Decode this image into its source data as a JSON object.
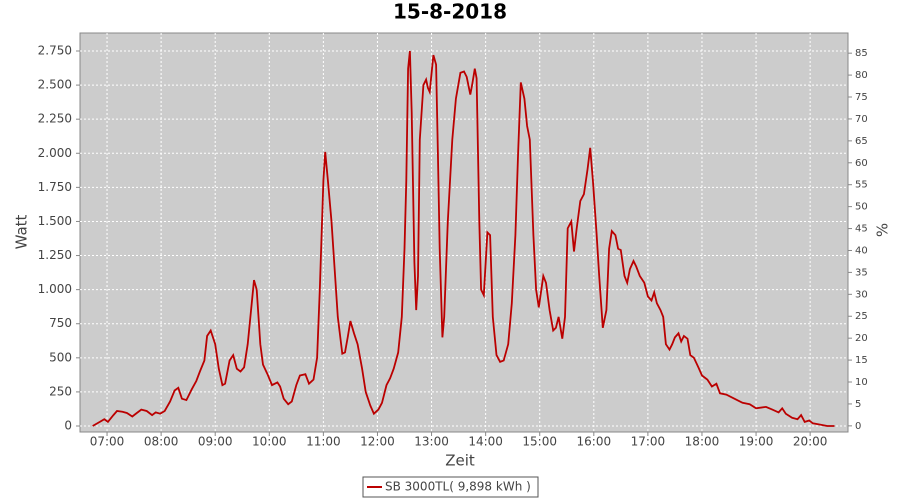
{
  "chart_data": {
    "type": "line",
    "title": "15-8-2018",
    "x_label": "Zeit",
    "y_label": "Watt",
    "y2_label": "%",
    "x": [
      "06:44",
      "06:52",
      "06:57",
      "07:01",
      "07:07",
      "07:11",
      "07:17",
      "07:22",
      "07:28",
      "07:33",
      "07:38",
      "07:44",
      "07:50",
      "07:54",
      "07:59",
      "08:04",
      "08:10",
      "08:15",
      "08:19",
      "08:23",
      "08:28",
      "08:34",
      "08:39",
      "08:43",
      "08:48",
      "08:51",
      "08:55",
      "09:00",
      "09:04",
      "09:08",
      "09:11",
      "09:16",
      "09:20",
      "09:24",
      "09:28",
      "09:32",
      "09:36",
      "09:39",
      "09:43",
      "09:46",
      "09:50",
      "09:53",
      "09:58",
      "10:03",
      "10:09",
      "10:12",
      "10:16",
      "10:21",
      "10:25",
      "10:30",
      "10:34",
      "10:40",
      "10:44",
      "10:49",
      "10:53",
      "10:56",
      "11:00",
      "11:02",
      "11:05",
      "11:09",
      "11:13",
      "11:16",
      "11:21",
      "11:24",
      "11:27",
      "11:30",
      "11:34",
      "11:38",
      "11:43",
      "11:47",
      "11:52",
      "11:56",
      "12:01",
      "12:05",
      "12:10",
      "12:14",
      "12:18",
      "12:23",
      "12:27",
      "12:30",
      "12:32",
      "12:34",
      "12:36",
      "12:38",
      "12:41",
      "12:43",
      "12:45",
      "12:47",
      "12:51",
      "12:54",
      "12:56",
      "12:58",
      "13:02",
      "13:05",
      "13:07",
      "13:09",
      "13:12",
      "13:14",
      "13:18",
      "13:23",
      "13:27",
      "13:32",
      "13:36",
      "13:39",
      "13:43",
      "13:45",
      "13:48",
      "13:50",
      "13:53",
      "13:55",
      "13:58",
      "14:02",
      "14:05",
      "14:08",
      "14:12",
      "14:16",
      "14:20",
      "14:25",
      "14:29",
      "14:33",
      "14:36",
      "14:39",
      "14:43",
      "14:46",
      "14:49",
      "14:53",
      "14:56",
      "14:59",
      "15:04",
      "15:07",
      "15:11",
      "15:15",
      "15:18",
      "15:21",
      "15:25",
      "15:28",
      "15:31",
      "15:35",
      "15:38",
      "15:41",
      "15:45",
      "15:49",
      "15:53",
      "15:56",
      "15:59",
      "16:03",
      "16:06",
      "16:10",
      "16:14",
      "16:17",
      "16:20",
      "16:24",
      "16:27",
      "16:30",
      "16:34",
      "16:37",
      "16:40",
      "16:44",
      "16:47",
      "16:51",
      "16:56",
      "17:00",
      "17:04",
      "17:07",
      "17:10",
      "17:14",
      "17:17",
      "17:20",
      "17:24",
      "17:27",
      "17:30",
      "17:34",
      "17:37",
      "17:40",
      "17:44",
      "17:47",
      "17:51",
      "17:56",
      "18:00",
      "18:06",
      "18:11",
      "18:16",
      "18:20",
      "18:27",
      "18:36",
      "18:45",
      "18:53",
      "19:00",
      "19:11",
      "19:18",
      "19:25",
      "19:29",
      "19:33",
      "19:40",
      "19:46",
      "19:50",
      "19:54",
      "19:59",
      "20:03",
      "20:11",
      "20:19",
      "20:27"
    ],
    "series": [
      {
        "name": "SB 3000TL( 9,898 kWh )",
        "color": "#bb0000",
        "values": [
          0,
          30,
          50,
          30,
          80,
          110,
          105,
          95,
          70,
          95,
          120,
          110,
          80,
          100,
          90,
          110,
          180,
          260,
          280,
          200,
          190,
          270,
          330,
          400,
          480,
          660,
          700,
          600,
          420,
          300,
          310,
          480,
          520,
          420,
          400,
          430,
          600,
          800,
          1070,
          1000,
          600,
          450,
          380,
          300,
          320,
          290,
          200,
          160,
          180,
          300,
          370,
          380,
          310,
          340,
          500,
          1000,
          1800,
          2010,
          1800,
          1500,
          1100,
          800,
          530,
          540,
          650,
          770,
          680,
          600,
          420,
          250,
          150,
          90,
          120,
          170,
          300,
          350,
          420,
          540,
          800,
          1300,
          1800,
          2620,
          2750,
          2300,
          1200,
          850,
          1100,
          2100,
          2500,
          2540,
          2480,
          2450,
          2720,
          2650,
          2000,
          1300,
          650,
          800,
          1500,
          2100,
          2400,
          2590,
          2600,
          2560,
          2430,
          2500,
          2620,
          2550,
          1500,
          1000,
          960,
          1420,
          1400,
          800,
          520,
          470,
          480,
          600,
          900,
          1400,
          2000,
          2520,
          2400,
          2200,
          2100,
          1400,
          1000,
          870,
          1100,
          1050,
          850,
          700,
          720,
          800,
          640,
          800,
          1450,
          1500,
          1280,
          1450,
          1650,
          1700,
          1880,
          2040,
          1800,
          1420,
          1100,
          720,
          850,
          1300,
          1430,
          1400,
          1300,
          1290,
          1100,
          1050,
          1150,
          1210,
          1170,
          1100,
          1050,
          950,
          920,
          980,
          900,
          850,
          800,
          600,
          560,
          600,
          650,
          680,
          620,
          660,
          640,
          520,
          500,
          430,
          370,
          340,
          290,
          310,
          240,
          230,
          200,
          170,
          160,
          130,
          140,
          120,
          100,
          130,
          90,
          60,
          50,
          80,
          30,
          40,
          20,
          10,
          0,
          0
        ]
      }
    ],
    "xlim": [
      "06:30",
      "20:42"
    ],
    "xticks": [
      "07:00",
      "08:00",
      "09:00",
      "10:00",
      "11:00",
      "12:00",
      "13:00",
      "14:00",
      "15:00",
      "16:00",
      "17:00",
      "18:00",
      "19:00",
      "20:00"
    ],
    "ylim": [
      -44,
      2882
    ],
    "yticks": [
      0,
      {
        "value": 250,
        "label": "250"
      },
      {
        "value": 500,
        "label": "500"
      },
      {
        "value": 750,
        "label": "750"
      },
      {
        "value": 1000,
        "label": "1.000"
      },
      {
        "value": 1250,
        "label": "1.250"
      },
      {
        "value": 1500,
        "label": "1.500"
      },
      {
        "value": 1750,
        "label": "1.750"
      },
      {
        "value": 2000,
        "label": "2.000"
      },
      {
        "value": 2250,
        "label": "2.250"
      },
      {
        "value": 2500,
        "label": "2.500"
      },
      {
        "value": 2750,
        "label": "2.750"
      }
    ],
    "y2lim": [
      -1.4,
      89.6
    ],
    "y2ticks": [
      0,
      5,
      10,
      15,
      20,
      25,
      30,
      35,
      40,
      45,
      50,
      55,
      60,
      65,
      70,
      75,
      80,
      85
    ],
    "grid": true,
    "legend": "bottom"
  }
}
